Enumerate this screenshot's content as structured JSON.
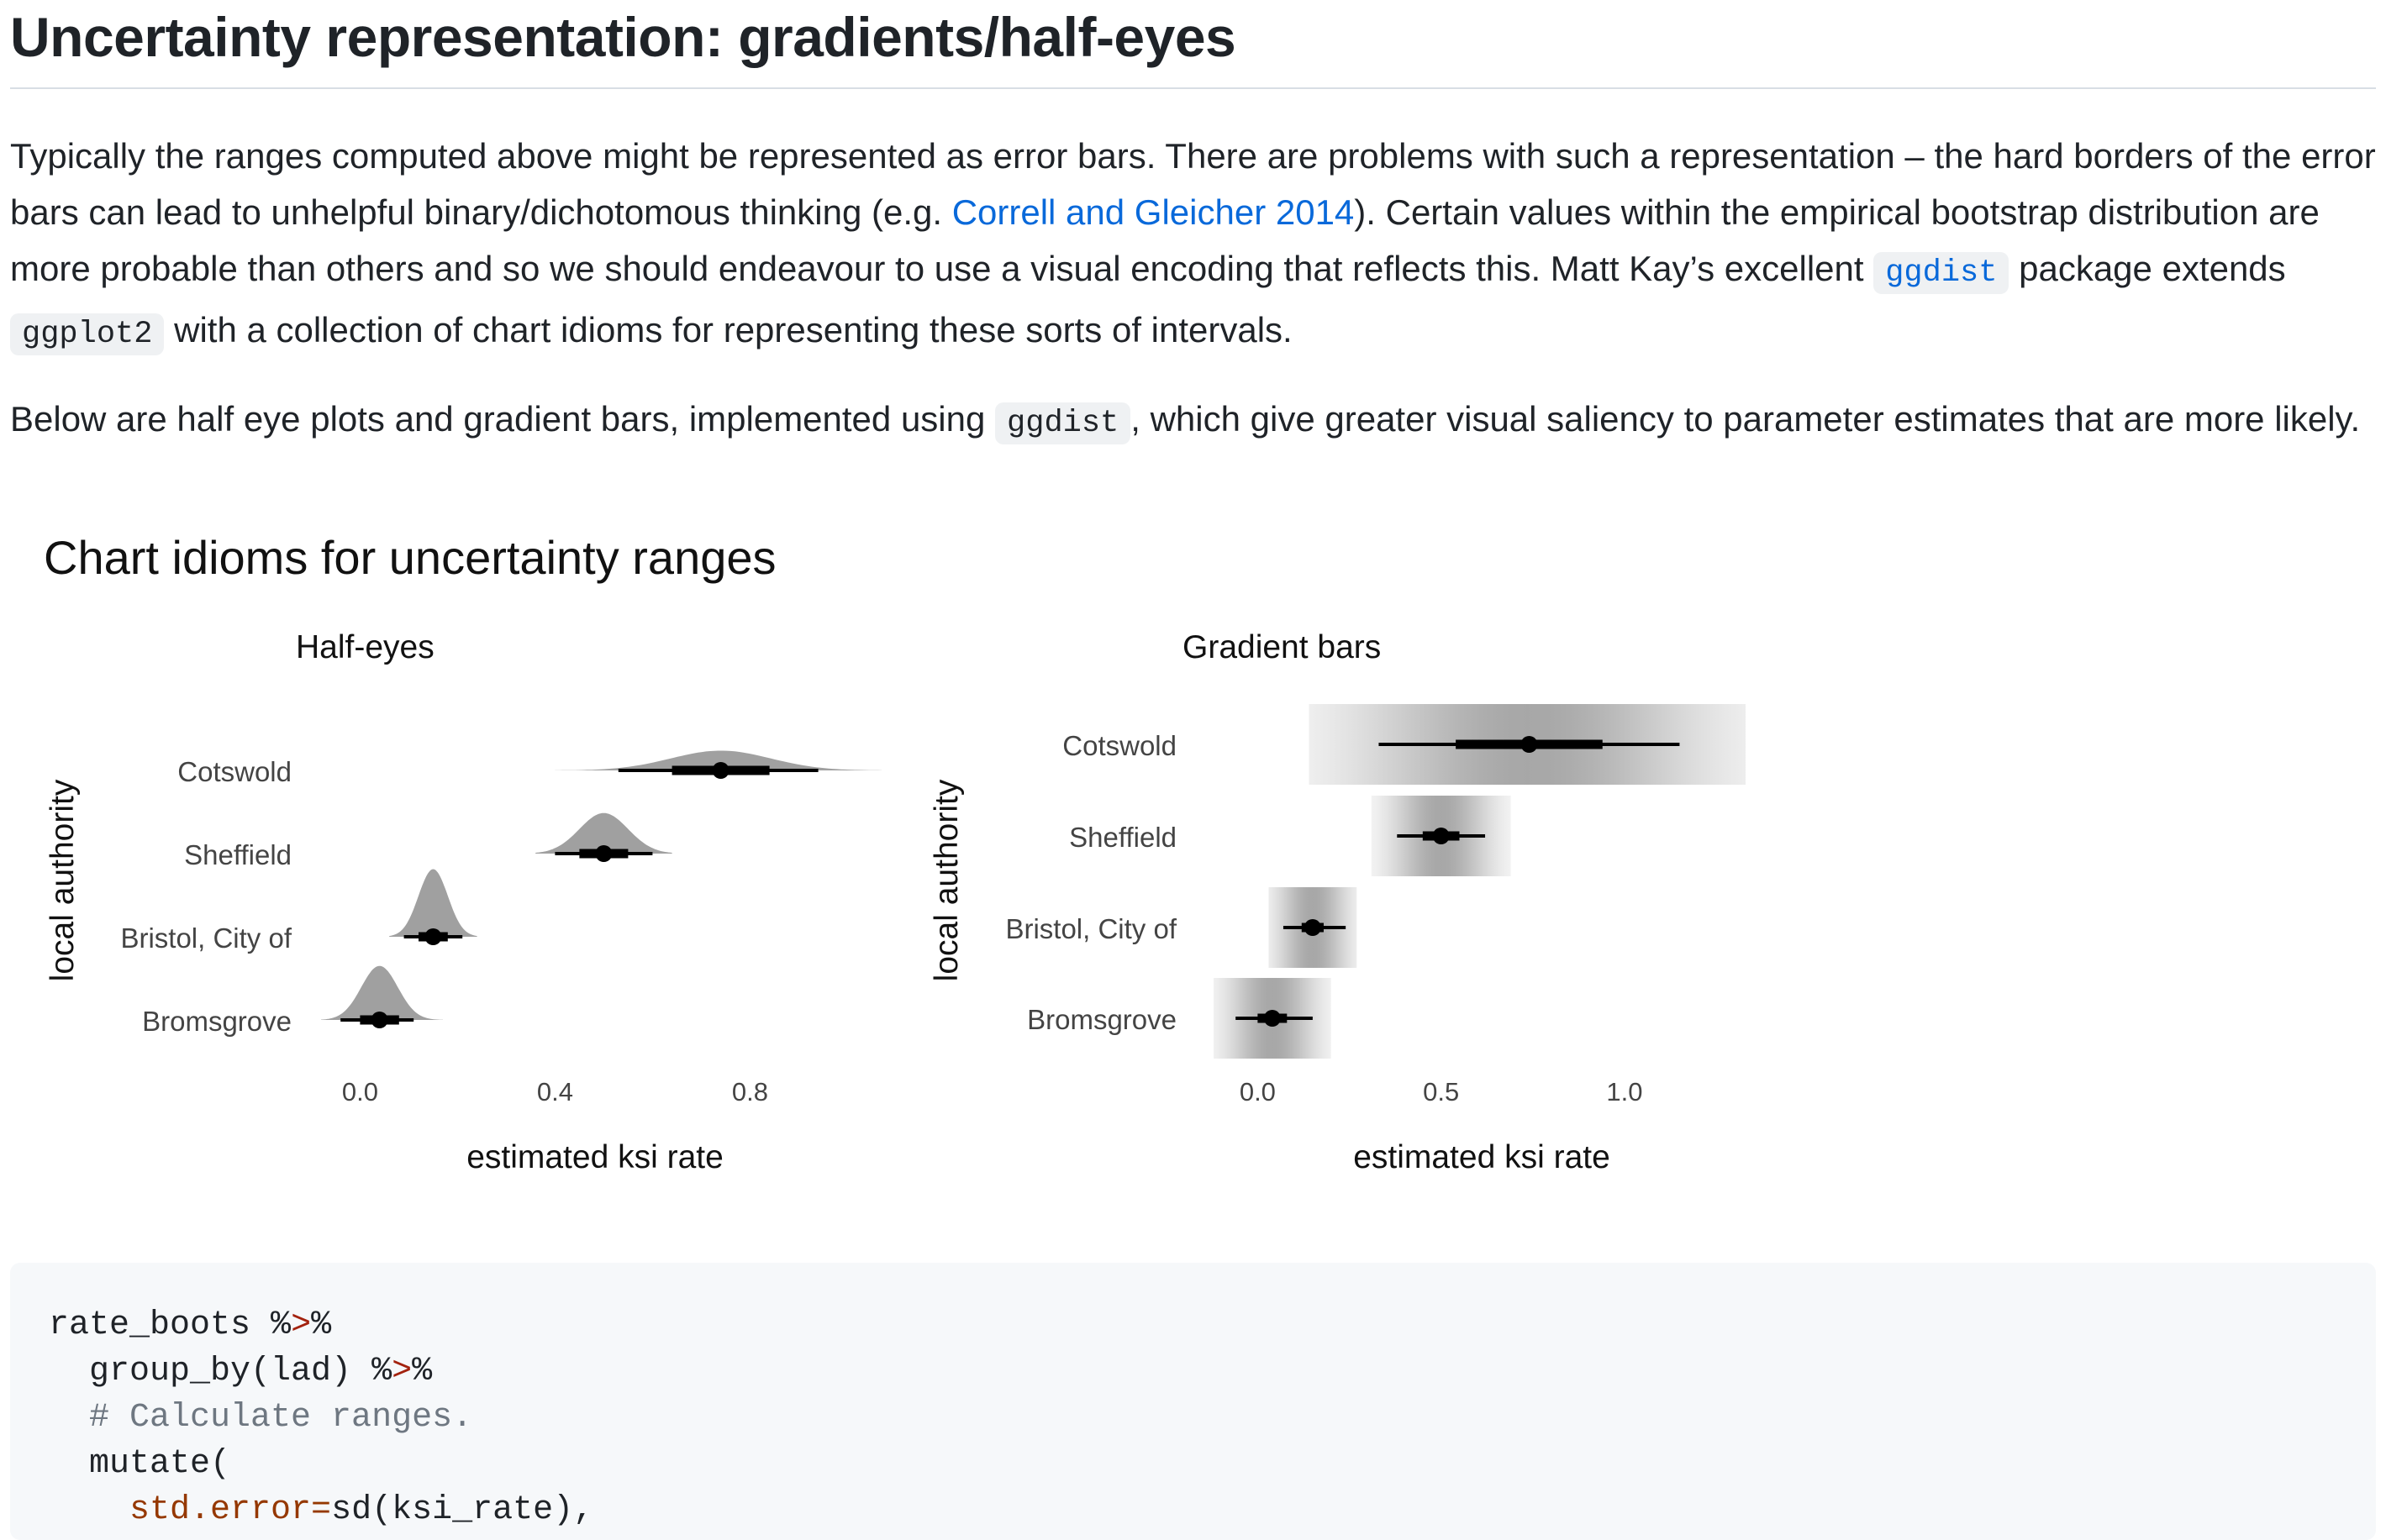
{
  "heading": "Uncertainty representation: gradients/half-eyes",
  "paragraph1": {
    "part1": "Typically the ranges computed above might be represented as error bars. There are problems with such a representation – the hard borders of the error bars can lead to unhelpful binary/dichotomous thinking (e.g. ",
    "link": "Correll and Gleicher 2014",
    "part2": "). Certain values within the empirical bootstrap distribution are more probable than others and so we should endeavour to use a visual encoding that reflects this. Matt Kay’s excellent ",
    "code1": "ggdist",
    "part3": " package extends ",
    "code2": "ggplot2",
    "part4": " with a collection of chart idioms for representing these sorts of intervals."
  },
  "paragraph2": {
    "part1": "Below are half eye plots and gradient bars, implemented using ",
    "code": "ggdist",
    "part2": ", which give greater visual saliency to parameter estimates that are more likely."
  },
  "figure_title": "Chart idioms for uncertainty ranges",
  "chart_data": [
    {
      "type": "interval",
      "title": "Half-eyes",
      "xlabel": "estimated ksi rate",
      "ylabel": "local authority",
      "x_ticks": [
        "0.0",
        "0.4",
        "0.8"
      ],
      "xlim": [
        -0.08,
        1.07
      ],
      "categories": [
        "Cotswold",
        "Sheffield",
        "Bristol, City of",
        "Bromsgrove"
      ],
      "points": [
        0.74,
        0.5,
        0.15,
        0.04
      ],
      "interval_66": [
        [
          0.64,
          0.84
        ],
        [
          0.45,
          0.55
        ],
        [
          0.12,
          0.18
        ],
        [
          0.0,
          0.08
        ]
      ],
      "interval_95": [
        [
          0.53,
          0.94
        ],
        [
          0.4,
          0.6
        ],
        [
          0.09,
          0.21
        ],
        [
          -0.04,
          0.11
        ]
      ],
      "density_range": [
        [
          0.4,
          1.07
        ],
        [
          0.36,
          0.64
        ],
        [
          0.06,
          0.24
        ],
        [
          -0.08,
          0.17
        ]
      ],
      "density_color": "#a0a0a0"
    },
    {
      "type": "interval",
      "title": "Gradient bars",
      "xlabel": "estimated ksi rate",
      "ylabel": "local authority",
      "x_ticks": [
        "0.0",
        "0.5",
        "1.0"
      ],
      "xlim": [
        -0.12,
        1.33
      ],
      "categories": [
        "Cotswold",
        "Sheffield",
        "Bristol, City of",
        "Bromsgrove"
      ],
      "points": [
        0.74,
        0.5,
        0.15,
        0.04
      ],
      "interval_66": [
        [
          0.54,
          0.94
        ],
        [
          0.45,
          0.55
        ],
        [
          0.12,
          0.18
        ],
        [
          0.0,
          0.08
        ]
      ],
      "interval_95": [
        [
          0.33,
          1.15
        ],
        [
          0.38,
          0.62
        ],
        [
          0.07,
          0.24
        ],
        [
          -0.06,
          0.15
        ]
      ],
      "density_range": [
        [
          0.14,
          1.33
        ],
        [
          0.31,
          0.69
        ],
        [
          0.03,
          0.27
        ],
        [
          -0.12,
          0.2
        ]
      ],
      "density_color": "#8a8a8a"
    }
  ],
  "code_lines": {
    "l1_a": "rate_boots ",
    "l1_op1": "%",
    "l1_op2": ">",
    "l1_op3": "%",
    "l2_a": "  group_by(lad) ",
    "l2_op1": "%",
    "l2_op2": ">",
    "l2_op3": "%",
    "l3": "  # Calculate ranges.",
    "l4": "  mutate(",
    "l5_arg": "    std.error=",
    "l5_rest": "sd(ksi_rate),"
  }
}
